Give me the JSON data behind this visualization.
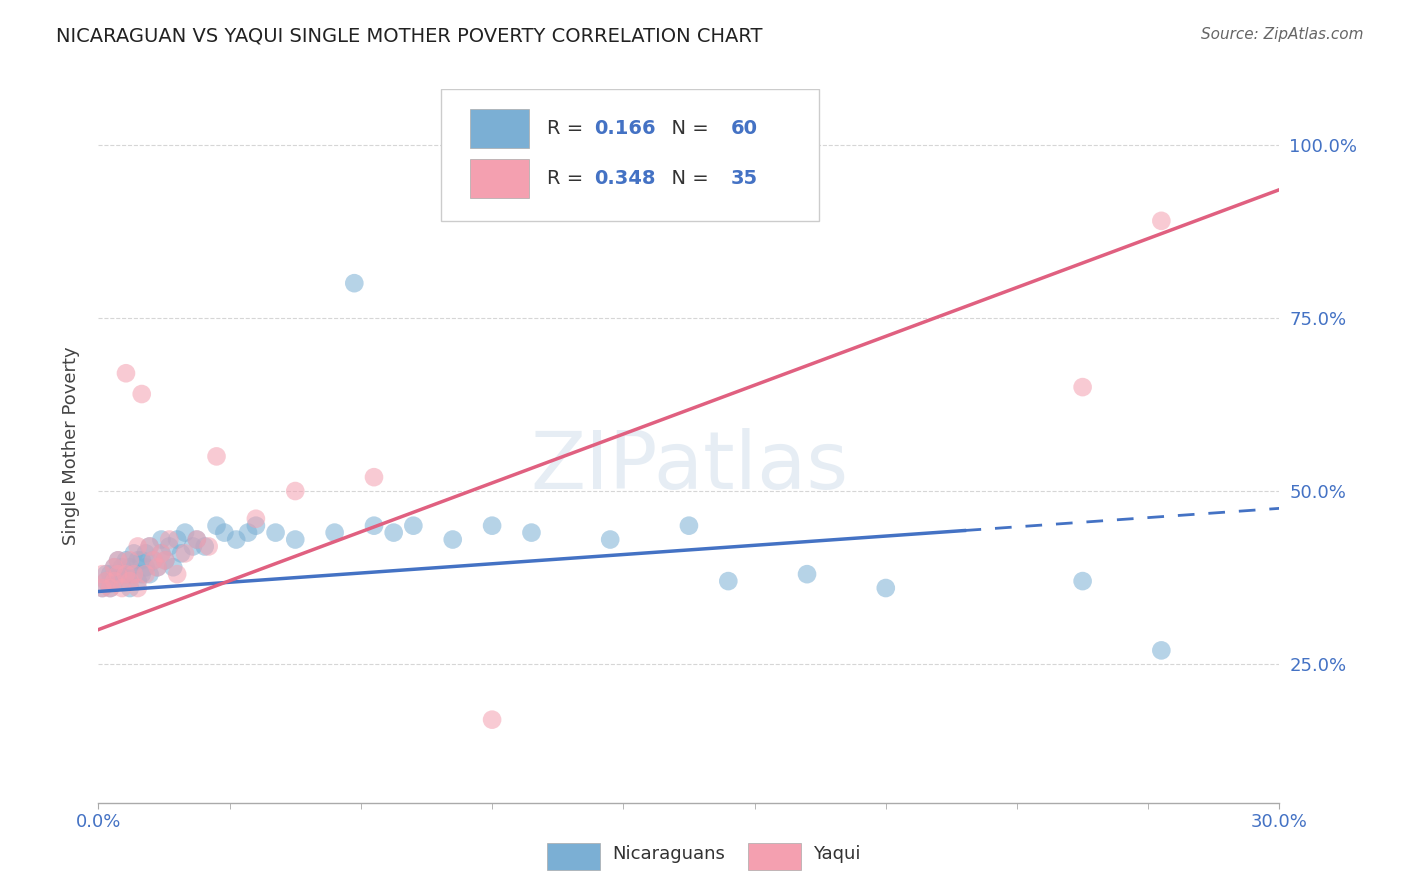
{
  "title": "NICARAGUAN VS YAQUI SINGLE MOTHER POVERTY CORRELATION CHART",
  "source_text": "Source: ZipAtlas.com",
  "ylabel": "Single Mother Poverty",
  "ytick_labels": [
    "100.0%",
    "75.0%",
    "50.0%",
    "25.0%"
  ],
  "ytick_values": [
    1.0,
    0.75,
    0.5,
    0.25
  ],
  "xmin": 0.0,
  "xmax": 0.3,
  "ymin": 0.05,
  "ymax": 1.08,
  "blue_R": 0.166,
  "blue_N": 60,
  "pink_R": 0.348,
  "pink_N": 35,
  "blue_color": "#7BAFD4",
  "pink_color": "#F4A0B0",
  "blue_line_color": "#4472C4",
  "pink_line_color": "#E06080",
  "legend_label_blue": "Nicaraguans",
  "legend_label_pink": "Yaqui",
  "blue_line_x0": 0.0,
  "blue_line_y0": 0.355,
  "blue_line_x1": 0.3,
  "blue_line_y1": 0.475,
  "blue_line_solid_end": 0.22,
  "pink_line_x0": 0.0,
  "pink_line_y0": 0.3,
  "pink_line_x1": 0.3,
  "pink_line_y1": 0.935,
  "grid_color": "#CCCCCC",
  "background_color": "#FFFFFF",
  "blue_scatter_x": [
    0.001,
    0.002,
    0.002,
    0.003,
    0.003,
    0.004,
    0.004,
    0.005,
    0.005,
    0.006,
    0.006,
    0.007,
    0.007,
    0.008,
    0.008,
    0.009,
    0.009,
    0.01,
    0.01,
    0.011,
    0.011,
    0.012,
    0.012,
    0.013,
    0.013,
    0.014,
    0.015,
    0.016,
    0.016,
    0.017,
    0.018,
    0.019,
    0.02,
    0.021,
    0.022,
    0.024,
    0.025,
    0.027,
    0.03,
    0.032,
    0.035,
    0.038,
    0.04,
    0.045,
    0.05,
    0.06,
    0.065,
    0.07,
    0.075,
    0.08,
    0.09,
    0.1,
    0.11,
    0.13,
    0.15,
    0.16,
    0.18,
    0.2,
    0.25,
    0.27
  ],
  "blue_scatter_y": [
    0.36,
    0.37,
    0.38,
    0.36,
    0.38,
    0.37,
    0.39,
    0.38,
    0.4,
    0.37,
    0.39,
    0.38,
    0.4,
    0.36,
    0.39,
    0.38,
    0.41,
    0.37,
    0.4,
    0.38,
    0.4,
    0.39,
    0.41,
    0.38,
    0.42,
    0.4,
    0.39,
    0.41,
    0.43,
    0.4,
    0.42,
    0.39,
    0.43,
    0.41,
    0.44,
    0.42,
    0.43,
    0.42,
    0.45,
    0.44,
    0.43,
    0.44,
    0.45,
    0.44,
    0.43,
    0.44,
    0.8,
    0.45,
    0.44,
    0.45,
    0.43,
    0.45,
    0.44,
    0.43,
    0.45,
    0.37,
    0.38,
    0.36,
    0.37,
    0.27
  ],
  "pink_scatter_x": [
    0.001,
    0.001,
    0.002,
    0.003,
    0.004,
    0.004,
    0.005,
    0.005,
    0.006,
    0.007,
    0.007,
    0.008,
    0.008,
    0.009,
    0.01,
    0.01,
    0.011,
    0.012,
    0.013,
    0.014,
    0.015,
    0.016,
    0.017,
    0.018,
    0.02,
    0.022,
    0.025,
    0.028,
    0.03,
    0.04,
    0.05,
    0.07,
    0.1,
    0.25,
    0.27
  ],
  "pink_scatter_y": [
    0.36,
    0.38,
    0.37,
    0.36,
    0.37,
    0.39,
    0.38,
    0.4,
    0.36,
    0.38,
    0.67,
    0.37,
    0.4,
    0.38,
    0.36,
    0.42,
    0.64,
    0.38,
    0.42,
    0.4,
    0.39,
    0.41,
    0.4,
    0.43,
    0.38,
    0.41,
    0.43,
    0.42,
    0.55,
    0.46,
    0.5,
    0.52,
    0.17,
    0.65,
    0.89
  ]
}
